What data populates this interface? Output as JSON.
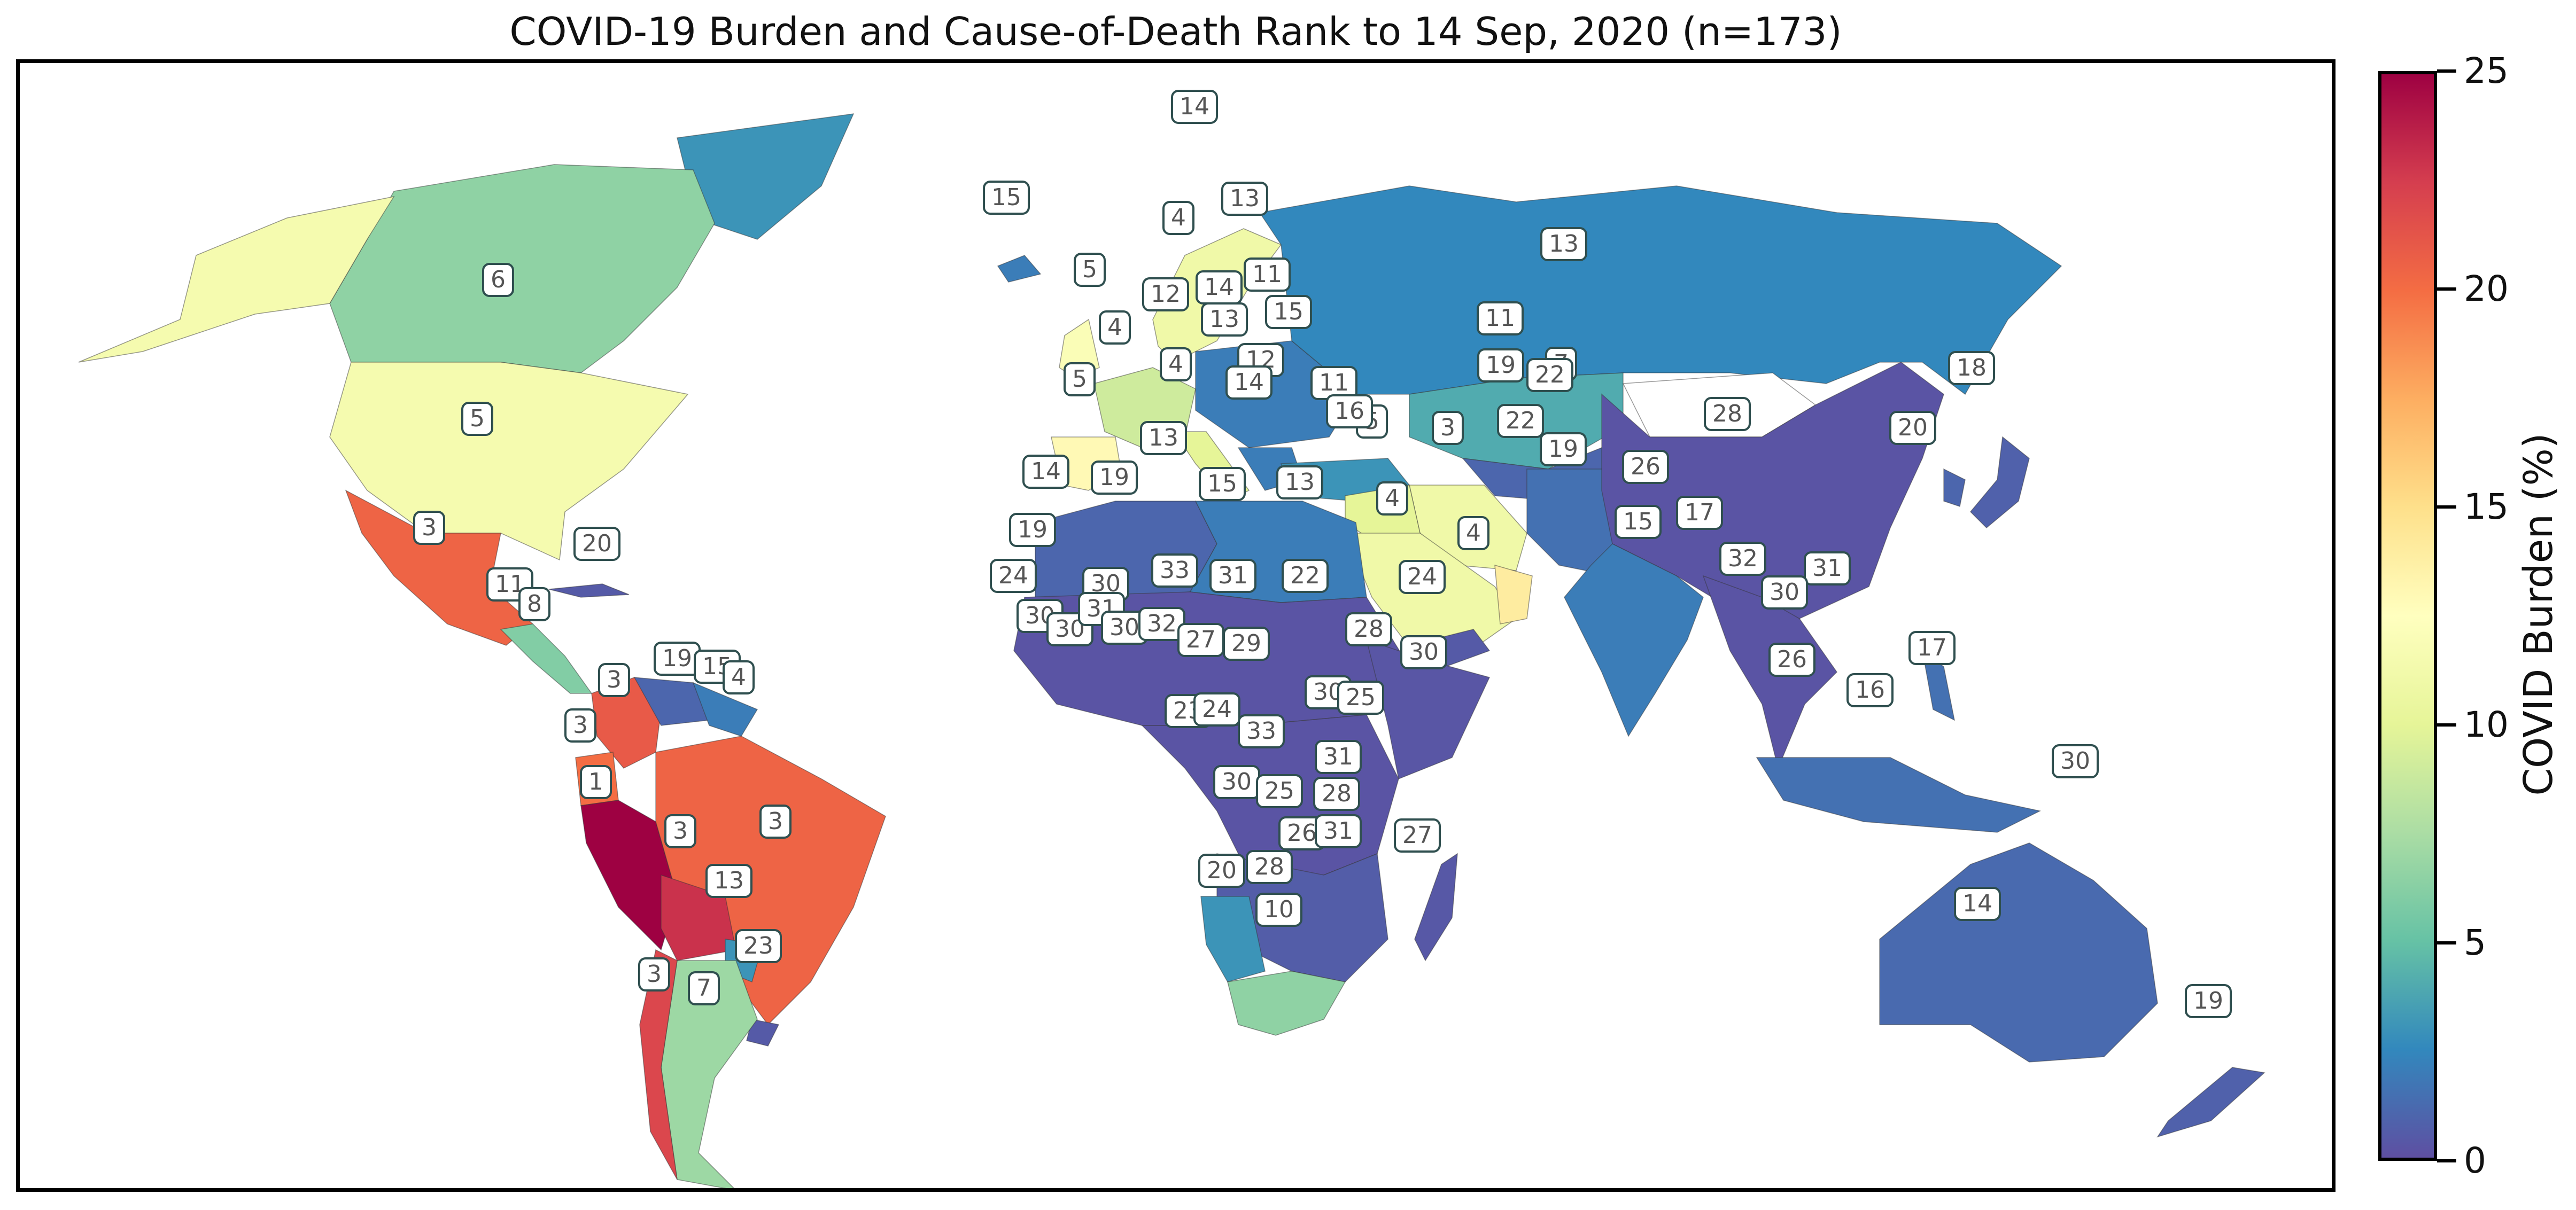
{
  "title": "COVID-19 Burden and Cause-of-Death Rank to 14 Sep, 2020 (n=173)",
  "colorbar": {
    "label": "COVID Burden (%)",
    "min": 0,
    "max": 25,
    "ticks": [
      "0",
      "5",
      "10",
      "15",
      "20",
      "25"
    ],
    "colormap": [
      "#5e4fa2",
      "#3288bd",
      "#66c2a5",
      "#abdda4",
      "#e6f598",
      "#ffffbf",
      "#fee08b",
      "#fdae61",
      "#f46d43",
      "#d53e4f",
      "#9e0142"
    ]
  },
  "map": {
    "projection": "plate-carree",
    "country_ranks": [
      {
        "region": "Canada",
        "rank": "6",
        "burden": 6.5
      },
      {
        "region": "United States",
        "rank": "5",
        "burden": 11.5
      },
      {
        "region": "Mexico",
        "rank": "3",
        "burden": 20.5
      },
      {
        "region": "Cuba",
        "rank": "20",
        "burden": 0.5
      },
      {
        "region": "Guatemala",
        "rank": "11",
        "burden": 8
      },
      {
        "region": "Honduras",
        "rank": "8",
        "burden": 6
      },
      {
        "region": "Colombia",
        "rank": "3",
        "burden": 21
      },
      {
        "region": "Venezuela",
        "rank": "19",
        "burden": 1
      },
      {
        "region": "Guyana",
        "rank": "15",
        "burden": 3
      },
      {
        "region": "Suriname",
        "rank": "4",
        "burden": 2
      },
      {
        "region": "Ecuador",
        "rank": "3",
        "burden": 20
      },
      {
        "region": "Peru",
        "rank": "1",
        "burden": 25
      },
      {
        "region": "Brazil",
        "rank": "3",
        "burden": 20.5
      },
      {
        "region": "Bolivia",
        "rank": "3",
        "burden": 23
      },
      {
        "region": "Paraguay",
        "rank": "13",
        "burden": 3
      },
      {
        "region": "Uruguay",
        "rank": "23",
        "burden": 0.5
      },
      {
        "region": "Chile",
        "rank": "3",
        "burden": 22
      },
      {
        "region": "Argentina",
        "rank": "7",
        "burden": 7
      },
      {
        "region": "Greenland",
        "rank": "14",
        "burden": 3
      },
      {
        "region": "Iceland",
        "rank": "15",
        "burden": 2
      },
      {
        "region": "Norway",
        "rank": "13",
        "burden": 2
      },
      {
        "region": "Sweden",
        "rank": "4",
        "burden": 11
      },
      {
        "region": "United Kingdom",
        "rank": "5",
        "burden": 12
      },
      {
        "region": "Denmark",
        "rank": "12",
        "burden": 3
      },
      {
        "region": "Belarus",
        "rank": "11",
        "burden": 2
      },
      {
        "region": "Poland",
        "rank": "14",
        "burden": 1.5
      },
      {
        "region": "Ukraine",
        "rank": "15",
        "burden": 2
      },
      {
        "region": "France",
        "rank": "4",
        "burden": 9
      },
      {
        "region": "Czechia",
        "rank": "13",
        "burden": 2
      },
      {
        "region": "Italy",
        "rank": "4",
        "burden": 10
      },
      {
        "region": "Spain",
        "rank": "5",
        "burden": 13
      },
      {
        "region": "Croatia",
        "rank": "12",
        "burden": 2
      },
      {
        "region": "Bulgaria",
        "rank": "14",
        "burden": 2
      },
      {
        "region": "Turkey",
        "rank": "11",
        "burden": 3
      },
      {
        "region": "Russia",
        "rank": "13",
        "burden": 2.5
      },
      {
        "region": "Kazakhstan",
        "rank": "11",
        "burden": 4
      },
      {
        "region": "Uzbekistan",
        "rank": "19",
        "burden": 1
      },
      {
        "region": "Kyrgyzstan",
        "rank": "7",
        "burden": 4
      },
      {
        "region": "Tajikistan",
        "rank": "22",
        "burden": 1
      },
      {
        "region": "Afghanistan",
        "rank": "22",
        "burden": 1
      },
      {
        "region": "Pakistan",
        "rank": "19",
        "burden": 1.5
      },
      {
        "region": "Iran",
        "rank": "3",
        "burden": 11
      },
      {
        "region": "Iraq",
        "rank": "5",
        "burden": 10
      },
      {
        "region": "Syria",
        "rank": "16",
        "burden": 1
      },
      {
        "region": "Saudi Arabia",
        "rank": "4",
        "burden": 11
      },
      {
        "region": "Oman",
        "rank": "4",
        "burden": 14
      },
      {
        "region": "Yemen",
        "rank": "24",
        "burden": 0.5
      },
      {
        "region": "Egypt",
        "rank": "13",
        "burden": 2
      },
      {
        "region": "Libya",
        "rank": "15",
        "burden": 2
      },
      {
        "region": "Algeria",
        "rank": "19",
        "burden": 1
      },
      {
        "region": "Tunisia",
        "rank": "13",
        "burden": 2
      },
      {
        "region": "Morocco",
        "rank": "14",
        "burden": 2
      },
      {
        "region": "Western Sahara",
        "rank": "19",
        "burden": 1
      },
      {
        "region": "Mauritania",
        "rank": "24",
        "burden": 0.5
      },
      {
        "region": "Senegal",
        "rank": "30",
        "burden": 0.3
      },
      {
        "region": "Guinea",
        "rank": "30",
        "burden": 0.3
      },
      {
        "region": "Mali",
        "rank": "30",
        "burden": 0.3
      },
      {
        "region": "Burkina Faso",
        "rank": "31",
        "burden": 0.3
      },
      {
        "region": "Ghana",
        "rank": "30",
        "burden": 0.3
      },
      {
        "region": "Nigeria",
        "rank": "32",
        "burden": 0.3
      },
      {
        "region": "Niger",
        "rank": "33",
        "burden": 0.2
      },
      {
        "region": "Chad",
        "rank": "31",
        "burden": 0.2
      },
      {
        "region": "Sudan",
        "rank": "22",
        "burden": 0.8
      },
      {
        "region": "Ethiopia",
        "rank": "28",
        "burden": 0.3
      },
      {
        "region": "Somalia",
        "rank": "30",
        "burden": 0.3
      },
      {
        "region": "Cameroon",
        "rank": "27",
        "burden": 0.4
      },
      {
        "region": "Central African Republic",
        "rank": "29",
        "burden": 0.2
      },
      {
        "region": "Gabon",
        "rank": "23",
        "burden": 1.5
      },
      {
        "region": "Congo",
        "rank": "24",
        "burden": 0.5
      },
      {
        "region": "DR Congo",
        "rank": "33",
        "burden": 0.2
      },
      {
        "region": "Uganda",
        "rank": "30",
        "burden": 0.3
      },
      {
        "region": "Kenya",
        "rank": "25",
        "burden": 0.8
      },
      {
        "region": "Tanzania",
        "rank": "31",
        "burden": 0.2
      },
      {
        "region": "Angola",
        "rank": "30",
        "burden": 0.3
      },
      {
        "region": "Zambia",
        "rank": "25",
        "burden": 0.6
      },
      {
        "region": "Malawi",
        "rank": "28",
        "burden": 0.3
      },
      {
        "region": "Zimbabwe",
        "rank": "26",
        "burden": 0.4
      },
      {
        "region": "Mozambique",
        "rank": "31",
        "burden": 0.2
      },
      {
        "region": "Madagascar",
        "rank": "27",
        "burden": 0.4
      },
      {
        "region": "Namibia",
        "rank": "20",
        "burden": 3
      },
      {
        "region": "Botswana",
        "rank": "28",
        "burden": 0.4
      },
      {
        "region": "South Africa",
        "rank": "10",
        "burden": 6.5
      },
      {
        "region": "China",
        "rank": "28",
        "burden": 0.2
      },
      {
        "region": "Mongolia",
        "rank": "",
        "burden": null
      },
      {
        "region": "Nepal",
        "rank": "26",
        "burden": 1
      },
      {
        "region": "India",
        "rank": "15",
        "burden": 2
      },
      {
        "region": "Bangladesh",
        "rank": "17",
        "burden": 1.5
      },
      {
        "region": "Myanmar",
        "rank": "32",
        "burden": 0.2
      },
      {
        "region": "Vietnam",
        "rank": "31",
        "burden": 0.2
      },
      {
        "region": "Thailand",
        "rank": "30",
        "burden": 0.2
      },
      {
        "region": "Malaysia",
        "rank": "26",
        "burden": 0.5
      },
      {
        "region": "Philippines",
        "rank": "17",
        "burden": 1.5
      },
      {
        "region": "Indonesia",
        "rank": "16",
        "burden": 1.5
      },
      {
        "region": "Papua New Guinea",
        "rank": "30",
        "burden": 0.3
      },
      {
        "region": "Japan",
        "rank": "20",
        "burden": 0.8
      },
      {
        "region": "South Korea",
        "rank": "18",
        "burden": 1
      },
      {
        "region": "Australia",
        "rank": "14",
        "burden": 1.2
      },
      {
        "region": "New Zealand",
        "rank": "19",
        "burden": 0.8
      }
    ]
  }
}
